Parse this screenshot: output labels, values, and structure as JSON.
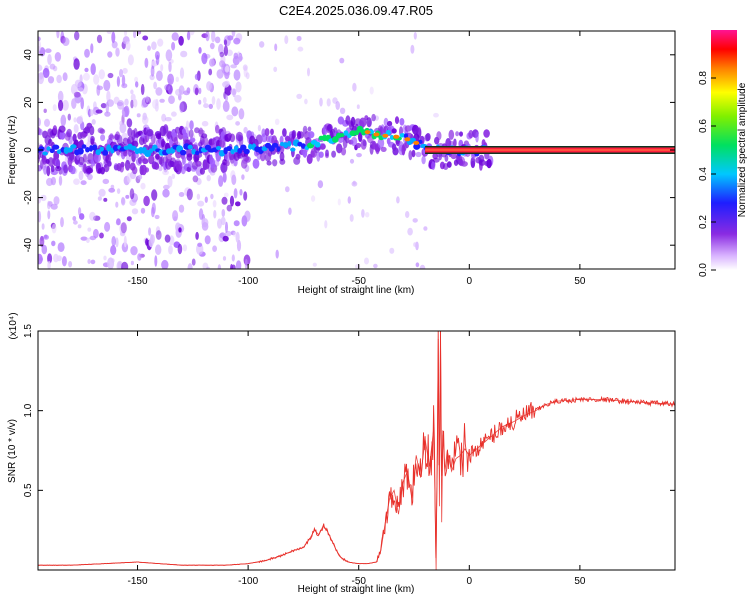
{
  "title": "C2E4.2025.036.09.47.R05",
  "chart_data": [
    {
      "type": "heatmap",
      "name": "spectrogram",
      "xlabel": "Height of straight line (km)",
      "ylabel": "Frequency (Hz)",
      "xlim": [
        -195,
        93
      ],
      "ylim": [
        -50,
        50
      ],
      "xticks": [
        -150,
        -100,
        -50,
        0,
        50
      ],
      "yticks": [
        -40,
        -20,
        0,
        20,
        40
      ],
      "xtick_labels": [
        "-150",
        "-100",
        "-50",
        "0",
        "50"
      ],
      "ytick_labels": [
        "-40",
        "-20",
        "0",
        "20",
        "40"
      ],
      "colorbar": {
        "label": "Normalized spectral amplitude",
        "range": [
          0,
          1
        ],
        "ticks": [
          0,
          0.2,
          0.4,
          0.6,
          0.8
        ],
        "tick_labels": [
          "0.0",
          "0.2",
          "0.4",
          "0.6",
          "0.8"
        ],
        "colormap": "rainbow (white-purple-blue-cyan-green-yellow-red-magenta)"
      },
      "ridge": {
        "description": "dominant frequency track",
        "x": [
          -195,
          -170,
          -150,
          -120,
          -100,
          -85,
          -75,
          -65,
          -58,
          -52,
          -48,
          -44,
          -40,
          -35,
          -30,
          -26,
          -22,
          -20,
          -18,
          -10,
          0,
          8,
          30,
          60,
          93
        ],
        "y": [
          0,
          0,
          0,
          0,
          0,
          1,
          2,
          4,
          6,
          8,
          8,
          7,
          6,
          6,
          5,
          4,
          2,
          0,
          0,
          0,
          0,
          0,
          0,
          0,
          0
        ]
      },
      "steady_line": {
        "x_start": -20,
        "x_end": 93,
        "frequency": 0
      },
      "noise_region_x": [
        -195,
        -110
      ]
    },
    {
      "type": "line",
      "name": "snr",
      "xlabel": "Height of straight line (km)",
      "ylabel": "SNR (10 * v/v)",
      "scale_label": "(x10⁴)",
      "xlim": [
        -195,
        93
      ],
      "ylim": [
        0,
        1.5
      ],
      "xticks": [
        -150,
        -100,
        -50,
        0,
        50
      ],
      "yticks": [
        0.5,
        1.0,
        1.5
      ],
      "xtick_labels": [
        "-150",
        "-100",
        "-50",
        "0",
        "50"
      ],
      "ytick_labels": [
        "0.5",
        "1.0",
        "1.5"
      ],
      "series": [
        {
          "name": "SNR",
          "color": "#e8312b",
          "x": [
            -195,
            -180,
            -165,
            -150,
            -140,
            -130,
            -120,
            -110,
            -100,
            -92,
            -85,
            -80,
            -75,
            -72,
            -70,
            -68,
            -66,
            -64,
            -62,
            -60,
            -58,
            -55,
            -50,
            -46,
            -42,
            -40,
            -38,
            -36,
            -34,
            -32,
            -30,
            -28,
            -26,
            -24,
            -22,
            -20,
            -18,
            -16,
            -15,
            -14,
            -13.5,
            -13,
            -12.5,
            -12,
            -11,
            -10,
            -8,
            -6,
            -4,
            -2,
            0,
            5,
            10,
            15,
            20,
            25,
            30,
            35,
            40,
            50,
            60,
            70,
            80,
            93
          ],
          "y": [
            0.03,
            0.03,
            0.04,
            0.05,
            0.04,
            0.03,
            0.03,
            0.03,
            0.04,
            0.06,
            0.09,
            0.12,
            0.14,
            0.2,
            0.25,
            0.22,
            0.28,
            0.24,
            0.18,
            0.12,
            0.08,
            0.05,
            0.04,
            0.04,
            0.05,
            0.12,
            0.3,
            0.45,
            0.5,
            0.35,
            0.55,
            0.62,
            0.45,
            0.72,
            0.58,
            0.82,
            0.65,
            0.9,
            0.0,
            1.45,
            0.4,
            1.5,
            0.3,
            0.85,
            0.62,
            0.75,
            0.62,
            0.7,
            0.72,
            0.76,
            0.72,
            0.78,
            0.84,
            0.9,
            0.93,
            0.97,
            1.0,
            1.04,
            1.06,
            1.07,
            1.07,
            1.06,
            1.05,
            1.04
          ]
        }
      ]
    }
  ]
}
